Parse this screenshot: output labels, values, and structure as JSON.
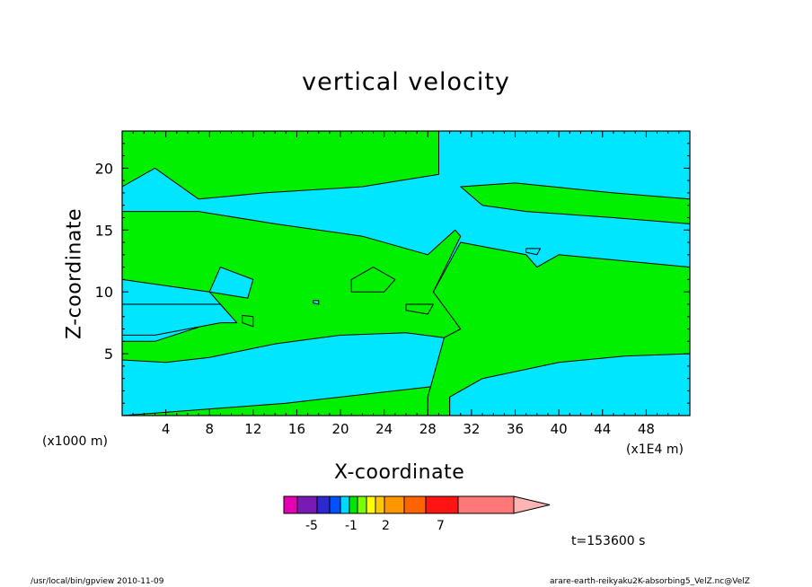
{
  "chart_data": {
    "type": "contour",
    "title": "vertical velocity",
    "xlabel": "X-coordinate",
    "ylabel": "Z-coordinate",
    "x_unit_left": "(x1000 m)",
    "x_unit_right": "(x1E4 m)",
    "xlim": [
      0,
      52
    ],
    "ylim": [
      0,
      23
    ],
    "x_ticks": [
      "4",
      "8",
      "12",
      "16",
      "20",
      "24",
      "28",
      "32",
      "36",
      "40",
      "44",
      "48"
    ],
    "y_ticks": [
      "5",
      "10",
      "15",
      "20"
    ],
    "fill_colors": {
      "negative": "#00e6ff",
      "positive": "#00f000"
    },
    "regions": [
      {
        "sign": "positive",
        "polygon": [
          [
            0,
            0
          ],
          [
            15,
            1
          ],
          [
            30,
            2.5
          ],
          [
            30,
            0
          ]
        ]
      },
      {
        "sign": "positive",
        "polygon": [
          [
            0,
            4.5
          ],
          [
            4,
            4.3
          ],
          [
            8,
            4.7
          ],
          [
            14,
            5.8
          ],
          [
            20,
            6.5
          ],
          [
            26,
            6.7
          ],
          [
            29.5,
            6.3
          ],
          [
            31,
            7
          ],
          [
            28.5,
            10
          ],
          [
            31,
            14.5
          ],
          [
            30.5,
            15
          ],
          [
            28,
            13
          ],
          [
            22,
            14.5
          ],
          [
            14,
            15.5
          ],
          [
            7,
            16.5
          ],
          [
            0,
            16.5
          ],
          [
            0,
            11
          ],
          [
            8,
            10
          ],
          [
            10,
            8
          ],
          [
            3,
            6
          ],
          [
            0,
            6
          ]
        ]
      },
      {
        "sign": "negative",
        "polygon": [
          [
            0,
            6.5
          ],
          [
            3,
            6.5
          ],
          [
            9,
            7.5
          ],
          [
            10.5,
            7.5
          ],
          [
            9,
            9
          ],
          [
            0,
            9
          ]
        ]
      },
      {
        "sign": "negative",
        "polygon": [
          [
            8,
            10
          ],
          [
            11.5,
            9.5
          ],
          [
            12,
            11
          ],
          [
            9,
            12
          ]
        ]
      },
      {
        "sign": "positive",
        "polygon": [
          [
            21,
            10
          ],
          [
            24,
            10
          ],
          [
            25,
            11
          ],
          [
            23,
            12
          ],
          [
            21,
            11
          ]
        ]
      },
      {
        "sign": "positive",
        "polygon": [
          [
            11,
            7.5
          ],
          [
            12,
            7.2
          ],
          [
            12,
            8
          ],
          [
            11,
            8.1
          ]
        ]
      },
      {
        "sign": "positive",
        "polygon": [
          [
            26,
            8.5
          ],
          [
            28,
            8.2
          ],
          [
            28.5,
            9
          ],
          [
            26,
            9
          ]
        ]
      },
      {
        "sign": "positive",
        "polygon": [
          [
            3,
            23
          ],
          [
            0,
            23
          ],
          [
            0,
            18.5
          ],
          [
            3,
            20
          ],
          [
            7,
            17.5
          ],
          [
            13,
            18
          ],
          [
            22,
            18.5
          ],
          [
            29,
            19.5
          ],
          [
            29,
            23
          ]
        ]
      },
      {
        "sign": "positive",
        "polygon": [
          [
            31,
            18.5
          ],
          [
            36,
            18.8
          ],
          [
            45,
            18
          ],
          [
            52,
            17.5
          ],
          [
            52,
            15.5
          ],
          [
            45,
            16
          ],
          [
            37,
            16.5
          ],
          [
            33,
            17
          ]
        ]
      },
      {
        "sign": "positive",
        "polygon": [
          [
            31,
            14
          ],
          [
            34,
            13.5
          ],
          [
            37,
            13
          ],
          [
            38,
            12
          ],
          [
            40,
            13
          ],
          [
            46,
            12.5
          ],
          [
            52,
            12
          ],
          [
            52,
            5
          ],
          [
            46,
            4.8
          ],
          [
            40,
            4.3
          ],
          [
            33,
            3
          ],
          [
            30,
            1.5
          ],
          [
            30,
            0
          ],
          [
            28,
            0
          ],
          [
            28,
            1.5
          ],
          [
            29.5,
            6.3
          ],
          [
            31,
            7
          ],
          [
            28.5,
            10
          ]
        ]
      },
      {
        "sign": "negative",
        "polygon": [
          [
            37,
            13.2
          ],
          [
            38,
            13
          ],
          [
            38.3,
            13.5
          ],
          [
            37,
            13.5
          ]
        ]
      },
      {
        "sign": "negative",
        "polygon": [
          [
            17.5,
            9.1
          ],
          [
            18,
            9
          ],
          [
            18,
            9.3
          ],
          [
            17.5,
            9.3
          ]
        ]
      }
    ],
    "colorbar": {
      "colors": [
        "#e600b4",
        "#7a1ab4",
        "#2a2ad0",
        "#0050ff",
        "#00d8ff",
        "#00e600",
        "#78ff00",
        "#ffff00",
        "#ffc800",
        "#ff9600",
        "#ff6400",
        "#ff1414",
        "#ff7878",
        "#ffb4b4"
      ],
      "labels": [
        "-5",
        "-1",
        "2",
        "7"
      ]
    }
  },
  "annotation": {
    "time": "t=153600 s"
  },
  "footer": {
    "left": "/usr/local/bin/gpview   2010-11-09",
    "right": "arare-earth-reikyaku2K-absorbing5_VelZ.nc@VelZ"
  }
}
